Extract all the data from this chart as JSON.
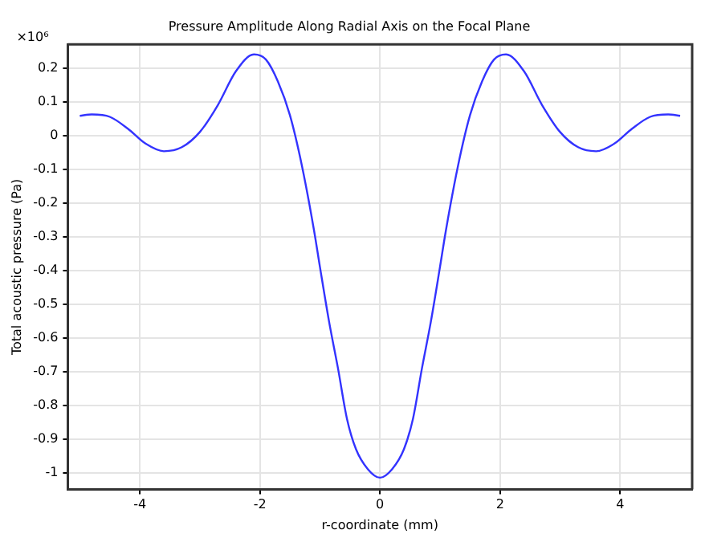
{
  "chart_data": {
    "type": "line",
    "title": "Pressure Amplitude Along Radial Axis on the Focal Plane",
    "xlabel": "r-coordinate (mm)",
    "ylabel": "Total acoustic pressure (Pa)",
    "annotations": [
      "×10⁶"
    ],
    "x": [
      -5,
      -4.8,
      -4.5,
      -4.2,
      -3.9,
      -3.6,
      -3.3,
      -3.0,
      -2.7,
      -2.4,
      -2.1,
      -1.9,
      -1.7,
      -1.5,
      -1.3,
      -1.1,
      -1.0,
      -0.85,
      -0.7,
      -0.55,
      -0.4,
      -0.2,
      0,
      0.2,
      0.4,
      0.55,
      0.7,
      0.85,
      1.0,
      1.1,
      1.3,
      1.5,
      1.7,
      1.9,
      2.1,
      2.4,
      2.7,
      3.0,
      3.3,
      3.6,
      3.9,
      4.2,
      4.5,
      4.8,
      5
    ],
    "series": [
      {
        "color": "#3333ff",
        "values": [
          0.058,
          0.062,
          0.055,
          0.02,
          -0.025,
          -0.047,
          -0.035,
          0.01,
          0.09,
          0.19,
          0.24,
          0.225,
          0.16,
          0.06,
          -0.09,
          -0.28,
          -0.39,
          -0.55,
          -0.69,
          -0.84,
          -0.93,
          -0.99,
          -1.015,
          -0.99,
          -0.93,
          -0.84,
          -0.69,
          -0.55,
          -0.39,
          -0.28,
          -0.09,
          0.06,
          0.16,
          0.225,
          0.24,
          0.19,
          0.09,
          0.01,
          -0.035,
          -0.047,
          -0.025,
          0.02,
          0.055,
          0.062,
          0.058
        ]
      }
    ],
    "xlim": [
      -5.2,
      5.2
    ],
    "xticks": [
      -4,
      -2,
      0,
      2,
      4
    ],
    "ylim": [
      -1.05,
      0.27
    ],
    "yticks": [
      0.2,
      0.1,
      0,
      -0.1,
      -0.2,
      -0.3,
      -0.4,
      -0.5,
      -0.6,
      -0.7,
      -0.8,
      -0.9,
      -1
    ],
    "grid": true,
    "legend": false,
    "marker": "none",
    "line_style": "solid"
  }
}
